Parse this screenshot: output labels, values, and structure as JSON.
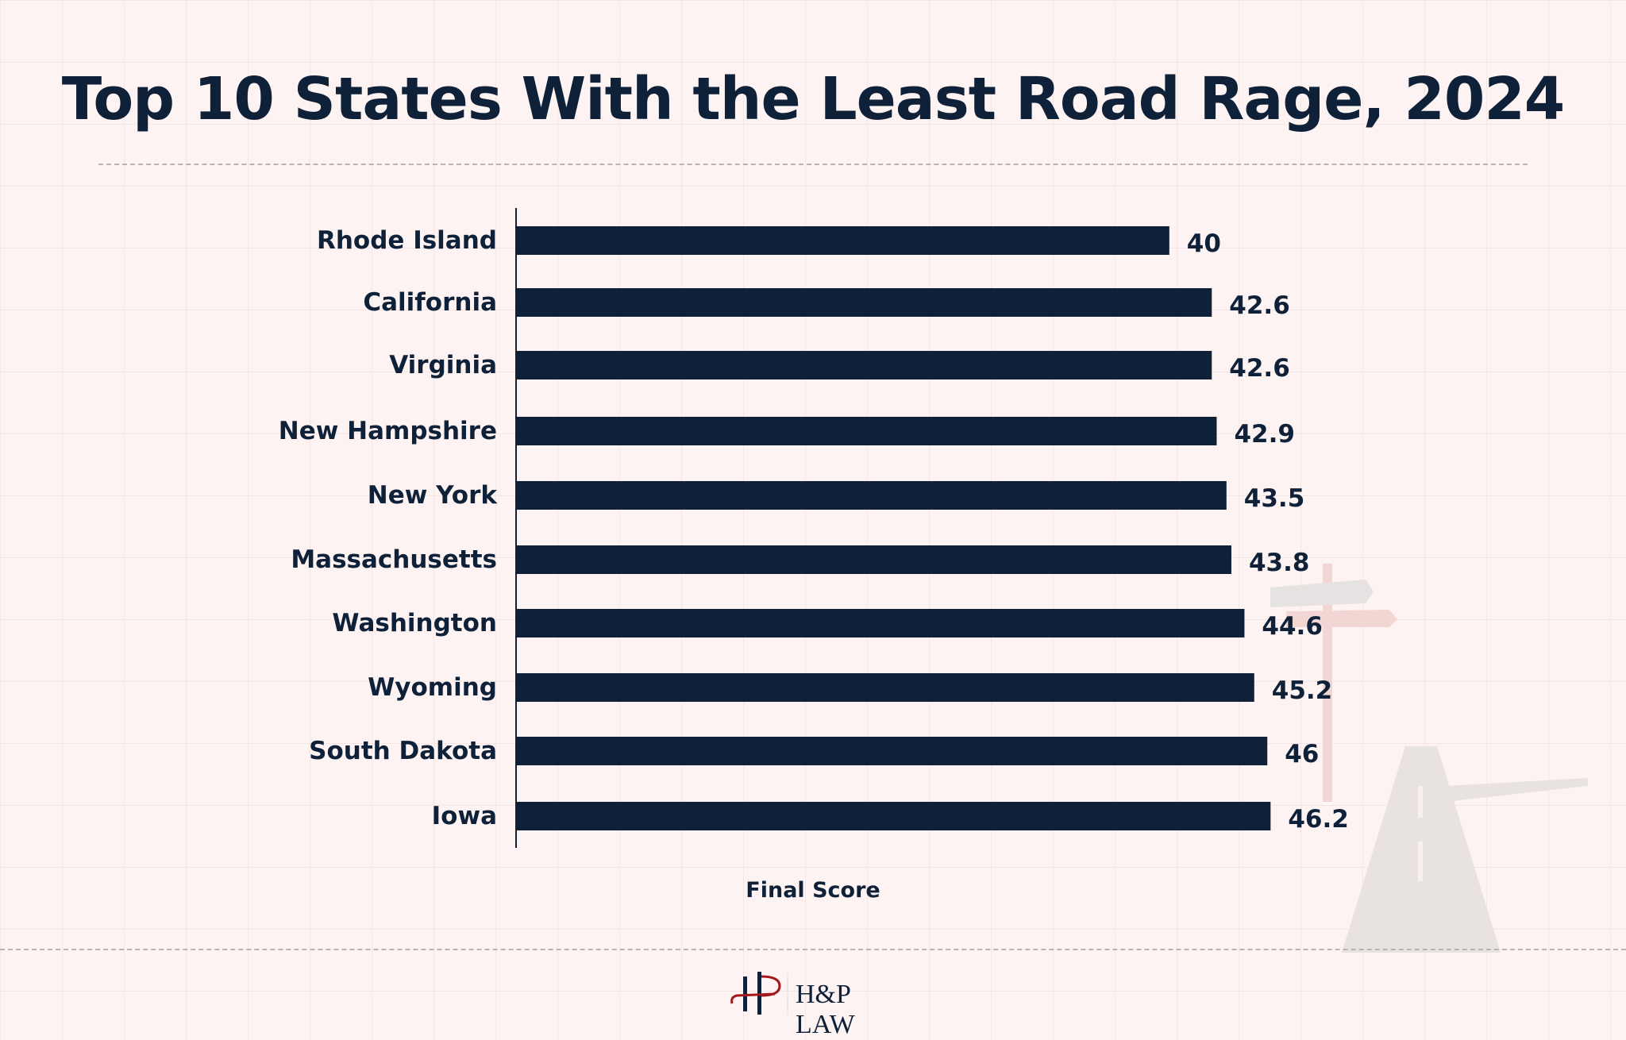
{
  "chart_data": {
    "type": "bar",
    "orientation": "horizontal",
    "title": "Top 10 States With the Least Road Rage, 2024",
    "xlabel": "Final Score",
    "ylabel": "",
    "categories": [
      "Rhode Island",
      "California",
      "Virginia",
      "New Hampshire",
      "New York",
      "Massachusetts",
      "Washington",
      "Wyoming",
      "South Dakota",
      "Iowa"
    ],
    "values": [
      40,
      42.6,
      42.6,
      42.9,
      43.5,
      43.8,
      44.6,
      45.2,
      46,
      46.2
    ],
    "data_labels": [
      "40",
      "42.6",
      "42.6",
      "42.9",
      "43.5",
      "43.8",
      "44.6",
      "45.2",
      "46",
      "46.2"
    ],
    "xlim": [
      0,
      50
    ],
    "grid": false,
    "bar_color": "#0f2139",
    "background_color": "#fdf3f2"
  },
  "footer": {
    "logo_text": "H&P LAW"
  }
}
